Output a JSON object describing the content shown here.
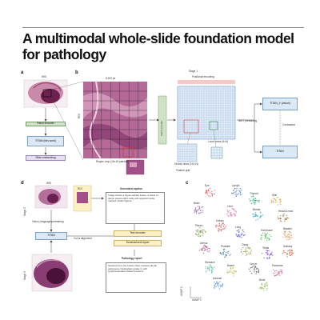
{
  "header": {
    "title_line1": "A multimodal whole-slide foundation model",
    "title_line2": "for pathology"
  },
  "panels": {
    "a": "a",
    "b": "b",
    "c": "c",
    "d": "d"
  },
  "panel_b": {
    "wsi_label": "WSI",
    "patch_encoder": "Patch encoder",
    "titan_box": "TITAN (this work)",
    "slide_embedding": "Slide embedding",
    "roi_label": "8,192 px",
    "region_label": "Region crop (16×16 patches)",
    "feature_grid_label": "Feature grid",
    "stage1_label": "Stage 1",
    "dino_label": "Positional encoding",
    "global_views_label": "Global views (14×14)",
    "local_views_label": "Local views (6×6)",
    "ibot_label": "iBOT pretraining",
    "titan_v_label": "TITAN_V (vision)",
    "contrastive_label": "Contrastive",
    "side_label_1": "ROI",
    "patch_encoder_vertical": "Patch encoder"
  },
  "panel_d": {
    "wsi_label": "WSI",
    "stage2_label": "Stage 2",
    "stage3_label": "Stage 3",
    "generated_caption_heading": "Generated caption",
    "caption_text": "Image shows a hyper-cellular tissue, a sheet of dense pleomorphic cells with atypical nuclei, marked mitotic figures...",
    "titan_box": "TITAN",
    "text_encoder": "Text encoder",
    "slide_report_box": "Summarized report",
    "coca_label": "CoCa alignment",
    "report_heading": "Pathology report",
    "report_text": "Sections from the breast show invasive ductal carcinoma, Nottingham grade 3, with lymphovascular invasion present...",
    "lbl_roi": "ROI",
    "side_note": "Vision–language pretraining",
    "lbl_small": "TITAN"
  },
  "panel_c": {
    "labels": [
      "Eye",
      "Lymph",
      "Thyroid",
      "Skin",
      "Brain",
      "Liver",
      "Breast",
      "Head & neck",
      "Pleura",
      "Kidney",
      "Lung",
      "Soft tissue",
      "Bladder",
      "Uterus",
      "Prostate",
      "Ovary",
      "Testis",
      "Salivary",
      "Stomach",
      "Bowel",
      "Cervix",
      "Pancreas",
      "Adrenal",
      "Bone"
    ],
    "axis_x": "UMAP 1",
    "axis_y": "UMAP 2"
  },
  "colors": {
    "accent_red": "#d23c3c",
    "accent_blue": "#4f7fc2",
    "green_box": "#cfe2c6",
    "tissue_purple": "#7b3a7a"
  }
}
